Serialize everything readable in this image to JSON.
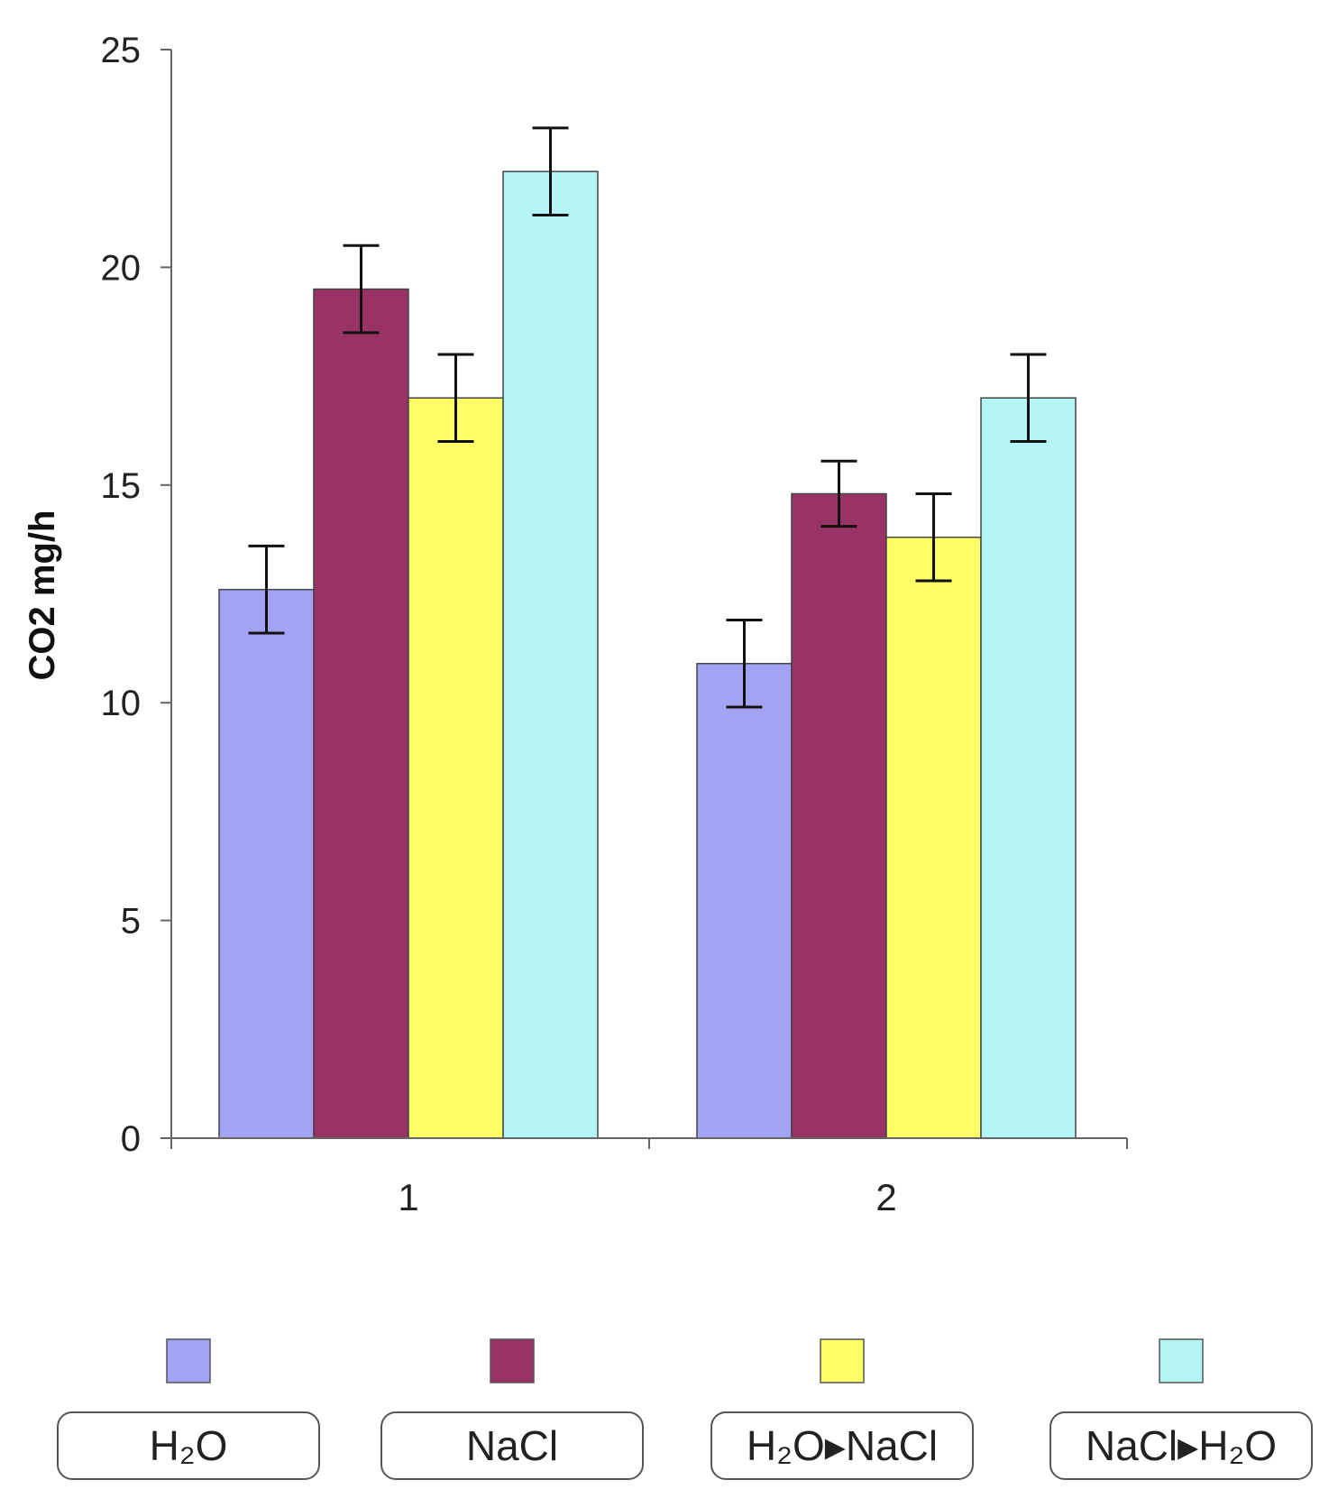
{
  "chart_data": {
    "type": "bar",
    "title": "",
    "xlabel": "",
    "ylabel": "CO2 mg/h",
    "ylim": [
      0,
      25
    ],
    "yticks": [
      0,
      5,
      10,
      15,
      20,
      25
    ],
    "ytick_labels": [
      "0",
      "5",
      "10",
      "15",
      "20",
      "25"
    ],
    "categories": [
      "1",
      "2"
    ],
    "grid": false,
    "legend_position": "bottom",
    "series": [
      {
        "name": "H₂O",
        "color": "#a3a3f5",
        "values": [
          12.6,
          10.9
        ],
        "errors": [
          1.0,
          1.0
        ]
      },
      {
        "name": "NaCl",
        "color": "#993366",
        "values": [
          19.5,
          14.8
        ],
        "errors": [
          1.0,
          0.75
        ]
      },
      {
        "name": "H₂O▸NaCl",
        "color": "#ffff66",
        "values": [
          17.0,
          13.8
        ],
        "errors": [
          1.0,
          1.0
        ]
      },
      {
        "name": "NaCl▸H₂O",
        "color": "#b3f5f5",
        "values": [
          22.2,
          17.0
        ],
        "errors": [
          1.0,
          1.0
        ]
      }
    ]
  }
}
